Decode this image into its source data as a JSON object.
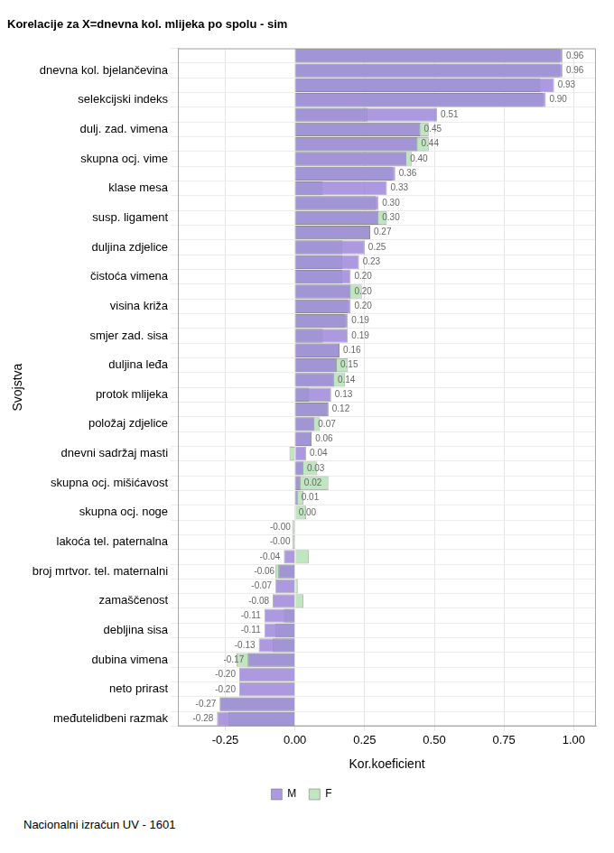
{
  "chart_data": {
    "type": "bar",
    "orientation": "horizontal",
    "title": "Korelacije za X=dnevna kol. mlijeka po spolu - sim",
    "x_label": "Kor.koeficient",
    "y_label": "Svojstva",
    "annotation": "Nacionalni izračun UV - 1601",
    "categories": [
      null,
      "dnevna kol. bjelančevina",
      null,
      "selekcijski indeks",
      null,
      "dulj. zad. vimena",
      null,
      "skupna ocj. vime",
      null,
      "klase mesa",
      null,
      "susp. ligament",
      null,
      "duljina zdjelice",
      null,
      "čistoća vimena",
      null,
      "visina križa",
      null,
      "smjer zad. sisa",
      null,
      "duljina leđa",
      null,
      "protok mlijeka",
      null,
      "položaj zdjelice",
      null,
      "dnevni sadržaj masti",
      null,
      "skupna ocj. mišićavost",
      null,
      "skupna ocj. noge",
      null,
      "lakoća tel. paternalna",
      null,
      "broj mrtvor. tel. maternalni",
      null,
      "zamaščenost",
      null,
      "debljina sisa",
      null,
      "dubina vimena",
      null,
      "neto prirast",
      null,
      "međutelidbeni razmak"
    ],
    "series": [
      {
        "name": "M",
        "color": "#9d87da",
        "values": [
          0.96,
          0.96,
          0.93,
          0.9,
          0.51,
          0.45,
          0.44,
          0.4,
          0.36,
          0.33,
          0.3,
          0.3,
          0.27,
          0.25,
          0.23,
          0.2,
          0.2,
          0.2,
          0.19,
          0.19,
          0.16,
          0.15,
          0.14,
          0.13,
          0.12,
          0.07,
          0.06,
          0.04,
          0.03,
          0.02,
          0.01,
          0.0,
          -0.003,
          -0.004,
          -0.04,
          -0.06,
          -0.07,
          -0.08,
          -0.11,
          -0.11,
          -0.13,
          -0.17,
          -0.2,
          -0.2,
          -0.27,
          -0.28
        ],
        "value_labels": [
          "0.96",
          "0.96",
          "0.93",
          "0.90",
          "0.51",
          "0.45",
          "0.44",
          "0.40",
          "0.36",
          "0.33",
          "0.30",
          "0.30",
          "0.27",
          "0.25",
          "0.23",
          "0.20",
          "0.20",
          "0.20",
          "0.19",
          "0.19",
          "0.16",
          "0.15",
          "0.14",
          "0.13",
          "0.12",
          "0.07",
          "0.06",
          "0.04",
          "0.03",
          "0.02",
          "0.01",
          "0.00",
          "-0.00",
          "-0.00",
          "-0.04",
          "-0.06",
          "-0.07",
          "-0.08",
          "-0.11",
          "-0.11",
          "-0.13",
          "-0.17",
          "-0.20",
          "-0.20",
          "-0.27",
          "-0.28"
        ]
      },
      {
        "name": "F",
        "color": "#a5dba5",
        "values": [
          0.95,
          0.95,
          0.88,
          0.89,
          0.26,
          0.48,
          0.48,
          0.42,
          0.35,
          0.1,
          0.29,
          0.33,
          0.27,
          0.17,
          0.17,
          0.17,
          0.24,
          0.19,
          0.18,
          0.1,
          0.16,
          0.19,
          0.18,
          0.05,
          0.12,
          0.09,
          0.06,
          -0.02,
          0.08,
          0.12,
          0.03,
          0.04,
          -0.01,
          -0.01,
          0.05,
          -0.07,
          0.01,
          0.03,
          -0.04,
          -0.07,
          -0.08,
          -0.21,
          0,
          0,
          -0.27,
          -0.24
        ]
      }
    ],
    "xlim": [
      -0.42,
      1.08
    ],
    "xticks": [
      -0.25,
      {
        "value": 0,
        "label": "0.00"
      },
      0.25,
      {
        "value": 0.5,
        "label": "0.50"
      },
      0.75,
      {
        "value": 1,
        "label": "1.00"
      }
    ],
    "grid": true,
    "legend": "bottom",
    "data_labels": true
  }
}
